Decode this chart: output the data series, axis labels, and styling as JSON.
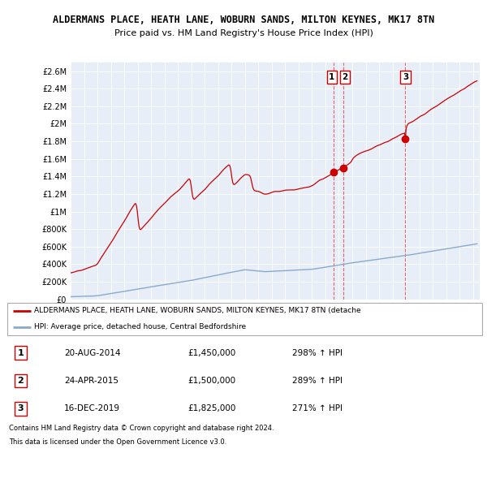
{
  "title": "ALDERMANS PLACE, HEATH LANE, WOBURN SANDS, MILTON KEYNES, MK17 8TN",
  "subtitle": "Price paid vs. HM Land Registry's House Price Index (HPI)",
  "red_legend": "ALDERMANS PLACE, HEATH LANE, WOBURN SANDS, MILTON KEYNES, MK17 8TN (detache",
  "blue_legend": "HPI: Average price, detached house, Central Bedfordshire",
  "yticks": [
    0,
    200000,
    400000,
    600000,
    800000,
    1000000,
    1200000,
    1400000,
    1600000,
    1800000,
    2000000,
    2200000,
    2400000,
    2600000
  ],
  "ytick_labels": [
    "£0",
    "£200K",
    "£400K",
    "£600K",
    "£800K",
    "£1M",
    "£1.2M",
    "£1.4M",
    "£1.6M",
    "£1.8M",
    "£2M",
    "£2.2M",
    "£2.4M",
    "£2.6M"
  ],
  "sales": [
    {
      "label": "1",
      "date_str": "20-AUG-2014",
      "price": 1450000,
      "year": 2014.63,
      "hpi_pct": "298%",
      "arrow": "↑"
    },
    {
      "label": "2",
      "date_str": "24-APR-2015",
      "price": 1500000,
      "year": 2015.31,
      "hpi_pct": "289%",
      "arrow": "↑"
    },
    {
      "label": "3",
      "date_str": "16-DEC-2019",
      "price": 1825000,
      "year": 2019.96,
      "hpi_pct": "271%",
      "arrow": "↑"
    }
  ],
  "red_color": "#cc0000",
  "blue_color": "#88aacc",
  "plot_bg": "#e8eef8",
  "fig_bg": "#ffffff",
  "footnote1": "Contains HM Land Registry data © Crown copyright and database right 2024.",
  "footnote2": "This data is licensed under the Open Government Licence v3.0.",
  "xmin": 1995,
  "xmax": 2025.5,
  "ymin": 0,
  "ymax": 2700000
}
